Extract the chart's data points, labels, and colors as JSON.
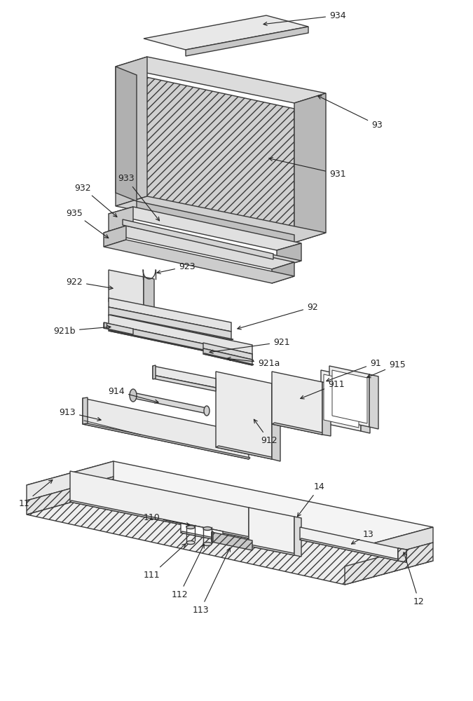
{
  "bg_color": "#ffffff",
  "line_color": "#3a3a3a",
  "figsize": [
    6.75,
    10.0
  ],
  "dpi": 100,
  "fs": 9,
  "lw": 1.0
}
